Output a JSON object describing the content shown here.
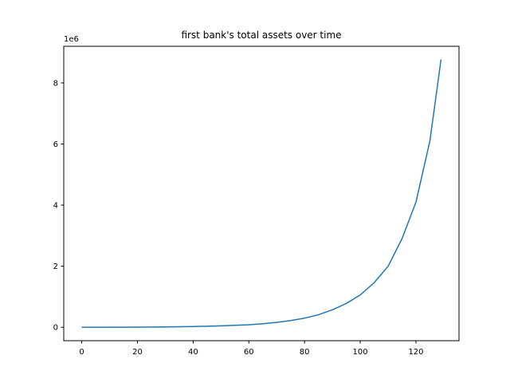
{
  "chart_data": {
    "type": "line",
    "title": "first bank's total assets over time",
    "xlabel": "",
    "ylabel": "",
    "y_offset_label": "1e6",
    "xlim": [
      -6.45,
      135.45
    ],
    "ylim": [
      -0.44,
      9.2
    ],
    "x_ticks": [
      0,
      20,
      40,
      60,
      80,
      100,
      120
    ],
    "y_ticks": [
      0,
      2,
      4,
      6,
      8
    ],
    "grid": false,
    "series": [
      {
        "color": "#1f77b4",
        "x": [
          0,
          10,
          20,
          30,
          40,
          50,
          60,
          65,
          70,
          75,
          80,
          85,
          90,
          95,
          100,
          105,
          110,
          115,
          120,
          125,
          129
        ],
        "y": [
          0.001,
          0.002,
          0.005,
          0.012,
          0.024,
          0.046,
          0.083,
          0.115,
          0.16,
          0.22,
          0.3,
          0.41,
          0.57,
          0.78,
          1.06,
          1.46,
          2.0,
          2.9,
          4.1,
          6.1,
          8.77
        ]
      }
    ]
  }
}
